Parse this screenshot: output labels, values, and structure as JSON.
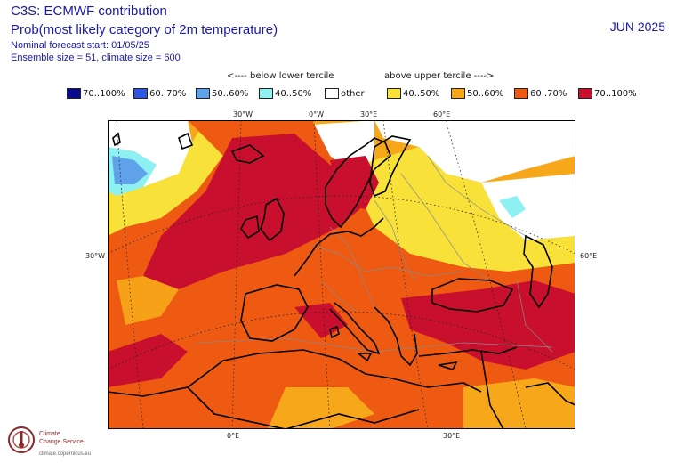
{
  "header": {
    "title": "C3S: ECMWF contribution",
    "subtitle": "Prob(most likely category of 2m temperature)",
    "forecast_start": "Nominal forecast start: 01/05/25",
    "ensemble": "Ensemble size = 51, climate size = 600",
    "month": "JUN 2025"
  },
  "tercile_labels": {
    "below": "<---- below lower tercile",
    "above": "above upper tercile ---->"
  },
  "legend": [
    {
      "label": "70..100%",
      "color": "#0a0a8c"
    },
    {
      "label": "60..70%",
      "color": "#2f55e0"
    },
    {
      "label": "50..60%",
      "color": "#5fa2ea"
    },
    {
      "label": "40..50%",
      "color": "#8ef0f0"
    },
    {
      "label": "other",
      "color": "#ffffff"
    },
    {
      "label": "40..50%",
      "color": "#f8e23a"
    },
    {
      "label": "50..60%",
      "color": "#f7a81a"
    },
    {
      "label": "60..70%",
      "color": "#ee5a12"
    },
    {
      "label": "70..100%",
      "color": "#c8102e"
    }
  ],
  "grid_labels": {
    "top": [
      "30°W",
      "0°W",
      "30°E",
      "60°E"
    ],
    "left": "30°W",
    "right": "60°E",
    "bottom": [
      "0°E",
      "30°E"
    ]
  },
  "logo": {
    "line1": "Climate",
    "line2": "Change Service",
    "url": "climate.copernicus.eu"
  }
}
